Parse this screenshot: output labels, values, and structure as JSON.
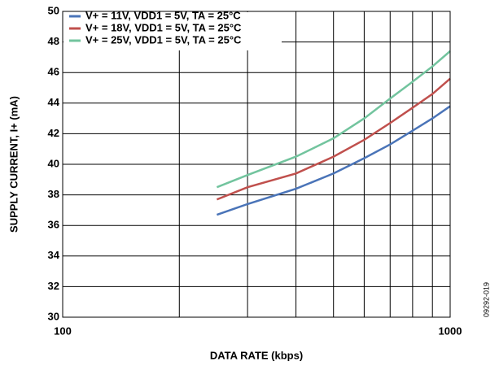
{
  "chart_data": {
    "type": "line",
    "xlabel": "DATA RATE (kbps)",
    "ylabel": "SUPPLY CURRENT, I+ (mA)",
    "figure_id": "09292-019",
    "xscale": "log",
    "xlim": [
      100,
      1000
    ],
    "xticks": [
      100,
      1000
    ],
    "xgrid_minor": [
      200,
      300,
      400,
      500,
      600,
      700,
      800,
      900
    ],
    "ylim": [
      30,
      50
    ],
    "yticks": [
      30,
      32,
      34,
      36,
      38,
      40,
      42,
      44,
      46,
      48,
      50
    ],
    "grid": true,
    "legend": "upper left",
    "x": [
      250,
      300,
      400,
      500,
      600,
      700,
      800,
      900,
      1000
    ],
    "series": [
      {
        "name": "V+ = 11V, VDD1 = 5V, TA = 25°C",
        "color": "#4a74b8",
        "values": [
          36.7,
          37.4,
          38.4,
          39.4,
          40.4,
          41.3,
          42.2,
          43.0,
          43.8
        ]
      },
      {
        "name": "V+ = 18V, VDD1 = 5V, TA = 25°C",
        "color": "#c0504d",
        "values": [
          37.7,
          38.5,
          39.4,
          40.5,
          41.6,
          42.7,
          43.7,
          44.6,
          45.6
        ]
      },
      {
        "name": "V+ = 25V, VDD1 = 5V, TA = 25°C",
        "color": "#72c49e",
        "values": [
          38.5,
          39.3,
          40.5,
          41.7,
          43.0,
          44.3,
          45.4,
          46.4,
          47.4
        ]
      }
    ]
  }
}
